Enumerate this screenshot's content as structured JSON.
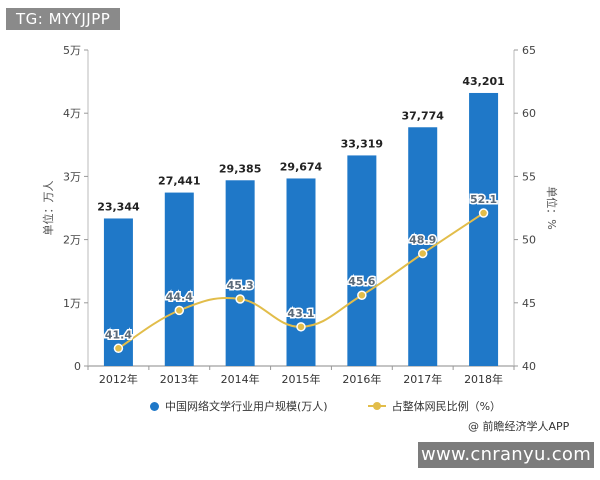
{
  "watermark_tag": "TG: MYYJJPP",
  "site_label": "www.cnranyu.com",
  "source_label": "@ 前瞻经济学人APP",
  "colors": {
    "bar": "#1f78c8",
    "line": "#e2bd4a",
    "marker_fill": "#e2bd4a",
    "marker_stroke": "#ffffff"
  },
  "chart_data": {
    "type": "bar",
    "categories": [
      "2012年",
      "2013年",
      "2014年",
      "2015年",
      "2016年",
      "2017年",
      "2018年"
    ],
    "series": [
      {
        "name": "中国网络文学行业用户规模(万人)",
        "type": "bar",
        "axis": "left",
        "values": [
          23344,
          27441,
          29385,
          29674,
          33319,
          37774,
          43201
        ],
        "labels": [
          "23,344",
          "27,441",
          "29,385",
          "29,674",
          "33,319",
          "37,774",
          "43,201"
        ]
      },
      {
        "name": "占整体网民比例（%）",
        "type": "line",
        "axis": "right",
        "values": [
          41.4,
          44.4,
          45.3,
          43.1,
          45.6,
          48.9,
          52.1
        ],
        "labels": [
          "41.4",
          "44.4",
          "45.3",
          "43.1",
          "45.6",
          "48.9",
          "52.1"
        ]
      }
    ],
    "ylabel_left": "单位：万人",
    "ylabel_right": "单位：%",
    "ylim_left": [
      0,
      50000
    ],
    "ylim_right": [
      40,
      65
    ],
    "yticks_left": [
      "0",
      "1万",
      "2万",
      "3万",
      "4万",
      "5万"
    ],
    "yticks_right": [
      "40",
      "45",
      "50",
      "55",
      "60",
      "65"
    ],
    "legend_position": "bottom",
    "grid": false
  }
}
